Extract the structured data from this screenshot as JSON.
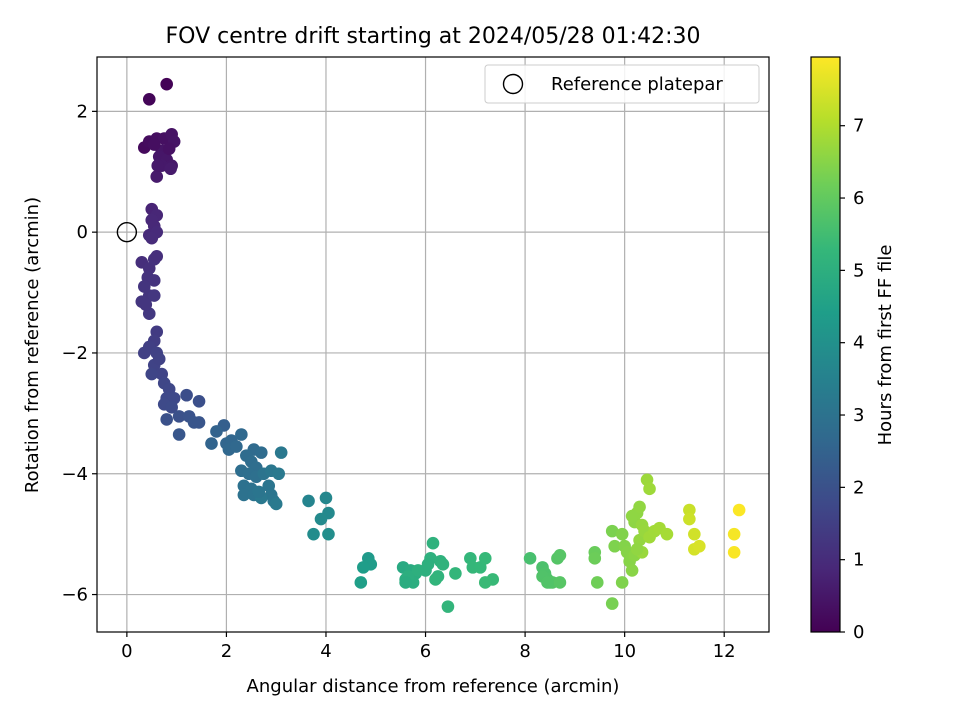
{
  "chart_data": {
    "type": "scatter",
    "title": "FOV centre drift starting at 2024/05/28 01:42:30",
    "xlabel": "Angular distance from reference (arcmin)",
    "ylabel": "Rotation from reference (arcmin)",
    "xlim": [
      -0.6,
      12.9
    ],
    "ylim": [
      -6.62,
      2.9
    ],
    "x_ticks": [
      0,
      2,
      4,
      6,
      8,
      10,
      12
    ],
    "y_ticks": [
      -6,
      -4,
      -2,
      0,
      2
    ],
    "x_tick_labels": [
      "0",
      "2",
      "4",
      "6",
      "8",
      "10",
      "12"
    ],
    "y_tick_labels": [
      "−6",
      "−4",
      "−2",
      "0",
      "2"
    ],
    "grid": true,
    "legend": {
      "placement": "top-right",
      "entries": [
        "Reference platepar"
      ]
    },
    "reference_point": {
      "x": 0,
      "y": 0
    },
    "colorbar": {
      "label": "Hours from first FF file",
      "range": [
        0,
        7.95
      ],
      "ticks": [
        0,
        1,
        2,
        3,
        4,
        5,
        6,
        7
      ],
      "tick_labels": [
        "0",
        "1",
        "2",
        "3",
        "4",
        "5",
        "6",
        "7"
      ],
      "colormap": "viridis",
      "colormap_stops": [
        "#440154",
        "#482878",
        "#3e4989",
        "#31688e",
        "#26828e",
        "#1f9e89",
        "#35b779",
        "#6ece58",
        "#b5de2b",
        "#fde725"
      ]
    },
    "points": [
      {
        "x": 0.8,
        "y": 2.45,
        "t": 0.05
      },
      {
        "x": 0.45,
        "y": 2.2,
        "t": 0.1
      },
      {
        "x": 0.35,
        "y": 1.4,
        "t": 0.2
      },
      {
        "x": 0.45,
        "y": 1.5,
        "t": 0.25
      },
      {
        "x": 0.6,
        "y": 1.55,
        "t": 0.3
      },
      {
        "x": 0.75,
        "y": 1.55,
        "t": 0.35
      },
      {
        "x": 0.9,
        "y": 1.62,
        "t": 0.4
      },
      {
        "x": 0.95,
        "y": 1.5,
        "t": 0.42
      },
      {
        "x": 0.7,
        "y": 1.35,
        "t": 0.45
      },
      {
        "x": 0.65,
        "y": 1.25,
        "t": 0.48
      },
      {
        "x": 0.8,
        "y": 1.2,
        "t": 0.5
      },
      {
        "x": 0.9,
        "y": 1.1,
        "t": 0.52
      },
      {
        "x": 0.7,
        "y": 1.1,
        "t": 0.55
      },
      {
        "x": 0.6,
        "y": 0.92,
        "t": 0.6
      },
      {
        "x": 0.88,
        "y": 1.05,
        "t": 0.58
      },
      {
        "x": 0.55,
        "y": 1.45,
        "t": 0.3
      },
      {
        "x": 0.85,
        "y": 1.38,
        "t": 0.36
      },
      {
        "x": 0.62,
        "y": 1.1,
        "t": 0.54
      },
      {
        "x": 0.5,
        "y": 0.38,
        "t": 0.8
      },
      {
        "x": 0.6,
        "y": 0.28,
        "t": 0.85
      },
      {
        "x": 0.5,
        "y": 0.2,
        "t": 0.88
      },
      {
        "x": 0.55,
        "y": 0.1,
        "t": 0.9
      },
      {
        "x": 0.45,
        "y": -0.05,
        "t": 0.95
      },
      {
        "x": 0.6,
        "y": 0.0,
        "t": 0.97
      },
      {
        "x": 0.5,
        "y": -0.1,
        "t": 1.0
      },
      {
        "x": 0.3,
        "y": -0.5,
        "t": 1.05
      },
      {
        "x": 0.45,
        "y": -0.6,
        "t": 1.1
      },
      {
        "x": 0.55,
        "y": -0.45,
        "t": 1.12
      },
      {
        "x": 0.42,
        "y": -0.75,
        "t": 1.15
      },
      {
        "x": 0.55,
        "y": -0.8,
        "t": 1.18
      },
      {
        "x": 0.35,
        "y": -0.9,
        "t": 1.2
      },
      {
        "x": 0.45,
        "y": -1.05,
        "t": 1.22
      },
      {
        "x": 0.3,
        "y": -1.15,
        "t": 1.25
      },
      {
        "x": 0.55,
        "y": -1.05,
        "t": 1.28
      },
      {
        "x": 0.45,
        "y": -1.35,
        "t": 1.3
      },
      {
        "x": 0.38,
        "y": -1.2,
        "t": 1.27
      },
      {
        "x": 0.6,
        "y": -0.4,
        "t": 1.08
      },
      {
        "x": 0.6,
        "y": -1.65,
        "t": 1.4
      },
      {
        "x": 0.55,
        "y": -1.8,
        "t": 1.45
      },
      {
        "x": 0.45,
        "y": -1.9,
        "t": 1.5
      },
      {
        "x": 0.35,
        "y": -2.0,
        "t": 1.52
      },
      {
        "x": 0.6,
        "y": -2.0,
        "t": 1.55
      },
      {
        "x": 0.55,
        "y": -2.2,
        "t": 1.6
      },
      {
        "x": 0.7,
        "y": -2.35,
        "t": 1.62
      },
      {
        "x": 0.5,
        "y": -2.35,
        "t": 1.65
      },
      {
        "x": 0.75,
        "y": -2.5,
        "t": 1.68
      },
      {
        "x": 0.85,
        "y": -2.6,
        "t": 1.7
      },
      {
        "x": 0.8,
        "y": -2.75,
        "t": 1.75
      },
      {
        "x": 0.95,
        "y": -2.75,
        "t": 1.78
      },
      {
        "x": 0.75,
        "y": -2.85,
        "t": 1.8
      },
      {
        "x": 0.9,
        "y": -2.9,
        "t": 1.82
      },
      {
        "x": 1.2,
        "y": -2.7,
        "t": 1.9
      },
      {
        "x": 1.45,
        "y": -2.8,
        "t": 1.95
      },
      {
        "x": 1.05,
        "y": -3.05,
        "t": 2.0
      },
      {
        "x": 1.25,
        "y": -3.05,
        "t": 2.05
      },
      {
        "x": 1.35,
        "y": -3.15,
        "t": 2.1
      },
      {
        "x": 1.45,
        "y": -3.15,
        "t": 2.12
      },
      {
        "x": 0.8,
        "y": -3.1,
        "t": 2.0
      },
      {
        "x": 1.05,
        "y": -3.35,
        "t": 2.15
      },
      {
        "x": 0.65,
        "y": -2.1,
        "t": 1.58
      },
      {
        "x": 1.95,
        "y": -3.2,
        "t": 2.4
      },
      {
        "x": 1.8,
        "y": -3.3,
        "t": 2.5
      },
      {
        "x": 1.7,
        "y": -3.5,
        "t": 2.55
      },
      {
        "x": 2.0,
        "y": -3.5,
        "t": 2.6
      },
      {
        "x": 2.1,
        "y": -3.45,
        "t": 2.62
      },
      {
        "x": 2.05,
        "y": -3.6,
        "t": 2.65
      },
      {
        "x": 2.2,
        "y": -3.55,
        "t": 2.68
      },
      {
        "x": 2.3,
        "y": -3.35,
        "t": 2.7
      },
      {
        "x": 2.55,
        "y": -3.6,
        "t": 2.75
      },
      {
        "x": 2.7,
        "y": -3.65,
        "t": 2.78
      },
      {
        "x": 2.4,
        "y": -3.7,
        "t": 2.8
      },
      {
        "x": 2.5,
        "y": -3.8,
        "t": 2.82
      },
      {
        "x": 2.6,
        "y": -3.9,
        "t": 2.85
      },
      {
        "x": 2.3,
        "y": -3.95,
        "t": 2.87
      },
      {
        "x": 2.45,
        "y": -4.0,
        "t": 2.9
      },
      {
        "x": 2.6,
        "y": -4.05,
        "t": 2.92
      },
      {
        "x": 2.35,
        "y": -4.2,
        "t": 2.95
      },
      {
        "x": 2.5,
        "y": -4.25,
        "t": 2.98
      },
      {
        "x": 2.35,
        "y": -4.35,
        "t": 3.0
      },
      {
        "x": 2.55,
        "y": -4.35,
        "t": 3.02
      },
      {
        "x": 2.75,
        "y": -4.0,
        "t": 3.05
      },
      {
        "x": 2.85,
        "y": -4.2,
        "t": 3.08
      },
      {
        "x": 2.9,
        "y": -4.35,
        "t": 3.1
      },
      {
        "x": 2.95,
        "y": -4.45,
        "t": 3.12
      },
      {
        "x": 2.9,
        "y": -3.95,
        "t": 3.15
      },
      {
        "x": 3.1,
        "y": -3.65,
        "t": 3.2
      },
      {
        "x": 3.05,
        "y": -4.0,
        "t": 3.22
      },
      {
        "x": 2.7,
        "y": -4.4,
        "t": 3.18
      },
      {
        "x": 3.0,
        "y": -4.5,
        "t": 3.25
      },
      {
        "x": 2.65,
        "y": -4.3,
        "t": 3.1
      },
      {
        "x": 3.65,
        "y": -4.45,
        "t": 3.6
      },
      {
        "x": 4.0,
        "y": -4.4,
        "t": 3.7
      },
      {
        "x": 4.05,
        "y": -4.65,
        "t": 3.75
      },
      {
        "x": 3.9,
        "y": -4.75,
        "t": 3.8
      },
      {
        "x": 3.75,
        "y": -5.0,
        "t": 3.85
      },
      {
        "x": 4.05,
        "y": -5.0,
        "t": 3.9
      },
      {
        "x": 4.85,
        "y": -5.4,
        "t": 4.3
      },
      {
        "x": 4.9,
        "y": -5.5,
        "t": 4.35
      },
      {
        "x": 4.75,
        "y": -5.55,
        "t": 4.4
      },
      {
        "x": 4.7,
        "y": -5.8,
        "t": 4.45
      },
      {
        "x": 5.55,
        "y": -5.55,
        "t": 4.8
      },
      {
        "x": 5.7,
        "y": -5.6,
        "t": 4.85
      },
      {
        "x": 5.8,
        "y": -5.65,
        "t": 4.9
      },
      {
        "x": 5.6,
        "y": -5.75,
        "t": 4.92
      },
      {
        "x": 5.75,
        "y": -5.8,
        "t": 4.95
      },
      {
        "x": 5.65,
        "y": -5.7,
        "t": 4.97
      },
      {
        "x": 5.85,
        "y": -5.6,
        "t": 5.0
      },
      {
        "x": 6.0,
        "y": -5.6,
        "t": 5.02
      },
      {
        "x": 6.1,
        "y": -5.4,
        "t": 5.05
      },
      {
        "x": 6.15,
        "y": -5.15,
        "t": 5.08
      },
      {
        "x": 6.3,
        "y": -5.45,
        "t": 5.1
      },
      {
        "x": 6.35,
        "y": -5.5,
        "t": 5.12
      },
      {
        "x": 6.25,
        "y": -5.7,
        "t": 5.15
      },
      {
        "x": 6.2,
        "y": -5.75,
        "t": 5.18
      },
      {
        "x": 6.45,
        "y": -6.2,
        "t": 5.2
      },
      {
        "x": 6.6,
        "y": -5.65,
        "t": 5.22
      },
      {
        "x": 6.9,
        "y": -5.4,
        "t": 5.25
      },
      {
        "x": 6.95,
        "y": -5.55,
        "t": 5.28
      },
      {
        "x": 7.1,
        "y": -5.55,
        "t": 5.3
      },
      {
        "x": 7.2,
        "y": -5.4,
        "t": 5.32
      },
      {
        "x": 7.35,
        "y": -5.75,
        "t": 5.35
      },
      {
        "x": 7.2,
        "y": -5.8,
        "t": 5.37
      },
      {
        "x": 6.05,
        "y": -5.5,
        "t": 5.0
      },
      {
        "x": 5.6,
        "y": -5.8,
        "t": 4.9
      },
      {
        "x": 8.1,
        "y": -5.4,
        "t": 5.6
      },
      {
        "x": 8.35,
        "y": -5.55,
        "t": 5.65
      },
      {
        "x": 8.4,
        "y": -5.65,
        "t": 5.7
      },
      {
        "x": 8.45,
        "y": -5.75,
        "t": 5.72
      },
      {
        "x": 8.35,
        "y": -5.7,
        "t": 5.74
      },
      {
        "x": 8.5,
        "y": -5.8,
        "t": 5.76
      },
      {
        "x": 8.55,
        "y": -5.8,
        "t": 5.78
      },
      {
        "x": 8.65,
        "y": -5.4,
        "t": 5.8
      },
      {
        "x": 8.7,
        "y": -5.35,
        "t": 5.82
      },
      {
        "x": 8.7,
        "y": -5.8,
        "t": 5.84
      },
      {
        "x": 8.45,
        "y": -5.8,
        "t": 5.75
      },
      {
        "x": 9.4,
        "y": -5.3,
        "t": 6.1
      },
      {
        "x": 9.4,
        "y": -5.4,
        "t": 6.15
      },
      {
        "x": 9.45,
        "y": -5.8,
        "t": 6.2
      },
      {
        "x": 9.75,
        "y": -6.15,
        "t": 6.3
      },
      {
        "x": 9.75,
        "y": -4.95,
        "t": 6.35
      },
      {
        "x": 9.8,
        "y": -5.2,
        "t": 6.38
      },
      {
        "x": 9.95,
        "y": -5.8,
        "t": 6.4
      },
      {
        "x": 9.95,
        "y": -5.0,
        "t": 6.42
      },
      {
        "x": 10.0,
        "y": -5.2,
        "t": 6.45
      },
      {
        "x": 10.05,
        "y": -5.3,
        "t": 6.48
      },
      {
        "x": 10.1,
        "y": -5.45,
        "t": 6.5
      },
      {
        "x": 10.15,
        "y": -5.6,
        "t": 6.52
      },
      {
        "x": 10.2,
        "y": -5.35,
        "t": 6.55
      },
      {
        "x": 10.2,
        "y": -4.8,
        "t": 6.58
      },
      {
        "x": 10.25,
        "y": -4.65,
        "t": 6.6
      },
      {
        "x": 10.3,
        "y": -4.55,
        "t": 6.62
      },
      {
        "x": 10.3,
        "y": -5.1,
        "t": 6.65
      },
      {
        "x": 10.35,
        "y": -4.85,
        "t": 6.68
      },
      {
        "x": 10.4,
        "y": -4.95,
        "t": 6.7
      },
      {
        "x": 10.35,
        "y": -5.3,
        "t": 6.72
      },
      {
        "x": 10.45,
        "y": -4.1,
        "t": 6.75
      },
      {
        "x": 10.5,
        "y": -4.25,
        "t": 6.78
      },
      {
        "x": 10.5,
        "y": -5.05,
        "t": 6.8
      },
      {
        "x": 10.6,
        "y": -4.95,
        "t": 6.82
      },
      {
        "x": 10.7,
        "y": -4.9,
        "t": 6.85
      },
      {
        "x": 10.85,
        "y": -5.0,
        "t": 6.88
      },
      {
        "x": 10.15,
        "y": -4.7,
        "t": 6.6
      },
      {
        "x": 10.25,
        "y": -5.25,
        "t": 6.62
      },
      {
        "x": 11.3,
        "y": -4.6,
        "t": 7.3
      },
      {
        "x": 11.3,
        "y": -4.75,
        "t": 7.35
      },
      {
        "x": 11.4,
        "y": -5.0,
        "t": 7.4
      },
      {
        "x": 11.4,
        "y": -5.25,
        "t": 7.45
      },
      {
        "x": 11.5,
        "y": -5.2,
        "t": 7.5
      },
      {
        "x": 12.2,
        "y": -5.0,
        "t": 7.85
      },
      {
        "x": 12.2,
        "y": -5.3,
        "t": 7.9
      },
      {
        "x": 12.3,
        "y": -4.6,
        "t": 7.93
      }
    ]
  }
}
